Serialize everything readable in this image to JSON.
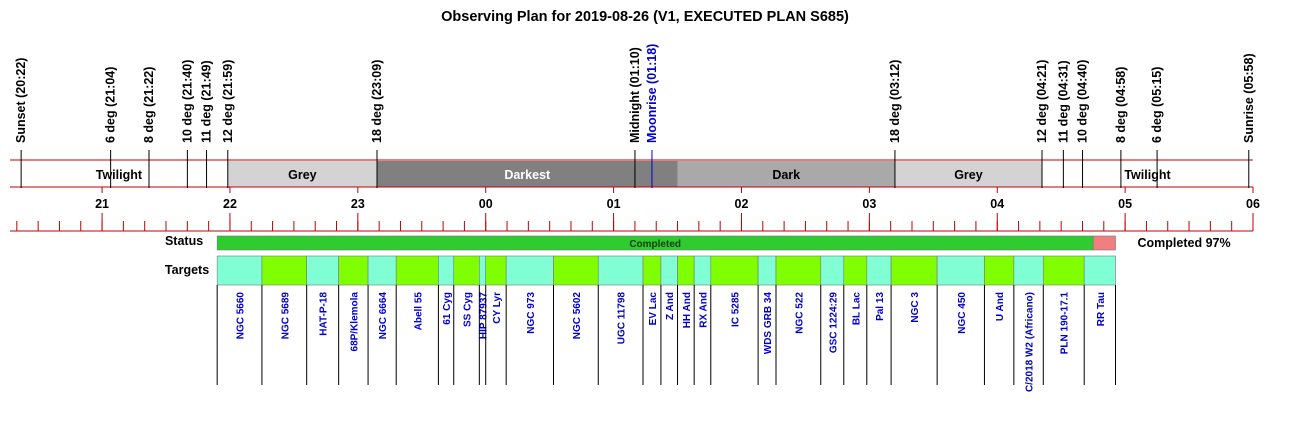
{
  "chart_data": {
    "type": "timeline",
    "title": "Observing Plan for 2019-08-26 (V1, EXECUTED PLAN S685)",
    "time_start": -3.72,
    "time_end": 6.0,
    "events": [
      {
        "label": "Sunset (20:22)",
        "t": -3.633,
        "color": "#000000"
      },
      {
        "label": "6 deg (21:04)",
        "t": -2.933,
        "color": "#000000"
      },
      {
        "label": "8 deg (21:22)",
        "t": -2.633,
        "color": "#000000"
      },
      {
        "label": "10 deg (21:40)",
        "t": -2.333,
        "color": "#000000"
      },
      {
        "label": "11 deg (21:49)",
        "t": -2.183,
        "color": "#000000"
      },
      {
        "label": "12 deg (21:59)",
        "t": -2.017,
        "color": "#000000"
      },
      {
        "label": "18 deg (23:09)",
        "t": -0.85,
        "color": "#000000"
      },
      {
        "label": "Midnight (01:10)",
        "t": 1.167,
        "color": "#000000"
      },
      {
        "label": "Moonrise (01:18)",
        "t": 1.3,
        "color": "#0000cc"
      },
      {
        "label": "18 deg (03:12)",
        "t": 3.2,
        "color": "#000000"
      },
      {
        "label": "12 deg (04:21)",
        "t": 4.35,
        "color": "#000000"
      },
      {
        "label": "11 deg (04:31)",
        "t": 4.517,
        "color": "#000000"
      },
      {
        "label": "10 deg (04:40)",
        "t": 4.667,
        "color": "#000000"
      },
      {
        "label": "8 deg (04:58)",
        "t": 4.967,
        "color": "#000000"
      },
      {
        "label": "6 deg (05:15)",
        "t": 5.25,
        "color": "#000000"
      },
      {
        "label": "Sunrise (05:58)",
        "t": 5.967,
        "color": "#000000"
      }
    ],
    "bands": [
      {
        "label": "Twilight",
        "start": -3.72,
        "end": -2.017,
        "fill": "#ffffff",
        "text": "#000000"
      },
      {
        "label": "Grey",
        "start": -2.017,
        "end": -0.85,
        "fill": "#d3d3d3",
        "text": "#000000"
      },
      {
        "label": "Darkest",
        "start": -0.85,
        "end": 1.5,
        "fill": "#808080",
        "text": "#ffffff"
      },
      {
        "label": "Dark",
        "start": 1.5,
        "end": 3.2,
        "fill": "#a9a9a9",
        "text": "#000000"
      },
      {
        "label": "Grey",
        "start": 3.2,
        "end": 4.35,
        "fill": "#d3d3d3",
        "text": "#000000"
      },
      {
        "label": "Twilight",
        "start": 4.35,
        "end": 6.0,
        "fill": "#ffffff",
        "text": "#000000"
      }
    ],
    "hour_ticks": [
      {
        "label": "21",
        "t": -3
      },
      {
        "label": "22",
        "t": -2
      },
      {
        "label": "23",
        "t": -1
      },
      {
        "label": "00",
        "t": 0
      },
      {
        "label": "01",
        "t": 1
      },
      {
        "label": "02",
        "t": 2
      },
      {
        "label": "03",
        "t": 3
      },
      {
        "label": "04",
        "t": 4
      },
      {
        "label": "05",
        "t": 5
      },
      {
        "label": "06",
        "t": 6
      }
    ],
    "status": {
      "row_label": "Status",
      "bar_text": "Completed",
      "summary": "Completed 97%",
      "start": -2.1,
      "completed_end": 4.75,
      "end": 4.925,
      "completed_color": "#2ecc2e",
      "remaining_color": "#f08080"
    },
    "targets_row_label": "Targets",
    "target_colors": [
      "#80ffd4",
      "#80ff00"
    ],
    "target_text_color": "#0000cc",
    "targets": [
      {
        "name": "NGC 5660",
        "start": -2.1,
        "end": -1.75
      },
      {
        "name": "NGC 5689",
        "start": -1.75,
        "end": -1.4
      },
      {
        "name": "HAT-P-18",
        "start": -1.4,
        "end": -1.15
      },
      {
        "name": "68P/Klemola",
        "start": -1.15,
        "end": -0.92
      },
      {
        "name": "NGC 6664",
        "start": -0.92,
        "end": -0.7
      },
      {
        "name": "Abell 55",
        "start": -0.7,
        "end": -0.37
      },
      {
        "name": "61 Cyg",
        "start": -0.37,
        "end": -0.25
      },
      {
        "name": "SS Cyg",
        "start": -0.25,
        "end": -0.05
      },
      {
        "name": "HIP 87937",
        "start": -0.05,
        "end": 0.0
      },
      {
        "name": "CY Lyr",
        "start": 0.0,
        "end": 0.16
      },
      {
        "name": "NGC 973",
        "start": 0.16,
        "end": 0.53
      },
      {
        "name": "NGC 5602",
        "start": 0.53,
        "end": 0.88
      },
      {
        "name": "UGC 11798",
        "start": 0.88,
        "end": 1.23
      },
      {
        "name": "EV Lac",
        "start": 1.23,
        "end": 1.37
      },
      {
        "name": "Z And",
        "start": 1.37,
        "end": 1.5
      },
      {
        "name": "HH And",
        "start": 1.5,
        "end": 1.63
      },
      {
        "name": "RX And",
        "start": 1.63,
        "end": 1.76
      },
      {
        "name": "IC 5285",
        "start": 1.76,
        "end": 2.13
      },
      {
        "name": "WDS GRB 34",
        "start": 2.13,
        "end": 2.27
      },
      {
        "name": "NGC 522",
        "start": 2.27,
        "end": 2.62
      },
      {
        "name": "GSC 1224:29",
        "start": 2.62,
        "end": 2.8
      },
      {
        "name": "BL Lac",
        "start": 2.8,
        "end": 2.98
      },
      {
        "name": "Pal 13",
        "start": 2.98,
        "end": 3.17
      },
      {
        "name": "NGC 3",
        "start": 3.17,
        "end": 3.53
      },
      {
        "name": "NGC 450",
        "start": 3.53,
        "end": 3.9
      },
      {
        "name": "U And",
        "start": 3.9,
        "end": 4.13
      },
      {
        "name": "C/2018 W2 (Africano)",
        "start": 4.13,
        "end": 4.36
      },
      {
        "name": "PLN 190-17.1",
        "start": 4.36,
        "end": 4.68
      },
      {
        "name": "RR Tau",
        "start": 4.68,
        "end": 4.925
      }
    ]
  }
}
